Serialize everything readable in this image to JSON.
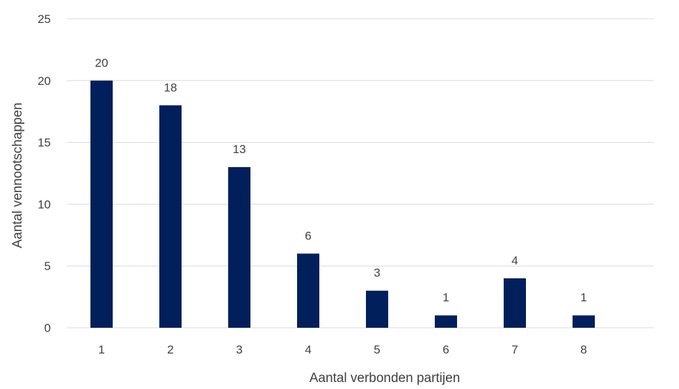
{
  "chart_data": {
    "type": "bar",
    "categories": [
      "1",
      "2",
      "3",
      "4",
      "5",
      "6",
      "7",
      "8"
    ],
    "values": [
      20,
      18,
      13,
      6,
      3,
      1,
      4,
      1
    ],
    "data_labels": [
      "20",
      "18",
      "13",
      "6",
      "3",
      "1",
      "4",
      "1"
    ],
    "title": "",
    "xlabel": "Aantal verbonden partijen",
    "ylabel": "Aantal vennootschappen",
    "ylim": [
      0,
      25
    ],
    "yticks": [
      "0",
      "5",
      "10",
      "15",
      "20",
      "25"
    ],
    "grid": true,
    "legend": "none",
    "colors": {
      "bar": "#001f5b",
      "gridline": "#d9d9d9",
      "text": "#404040"
    }
  }
}
